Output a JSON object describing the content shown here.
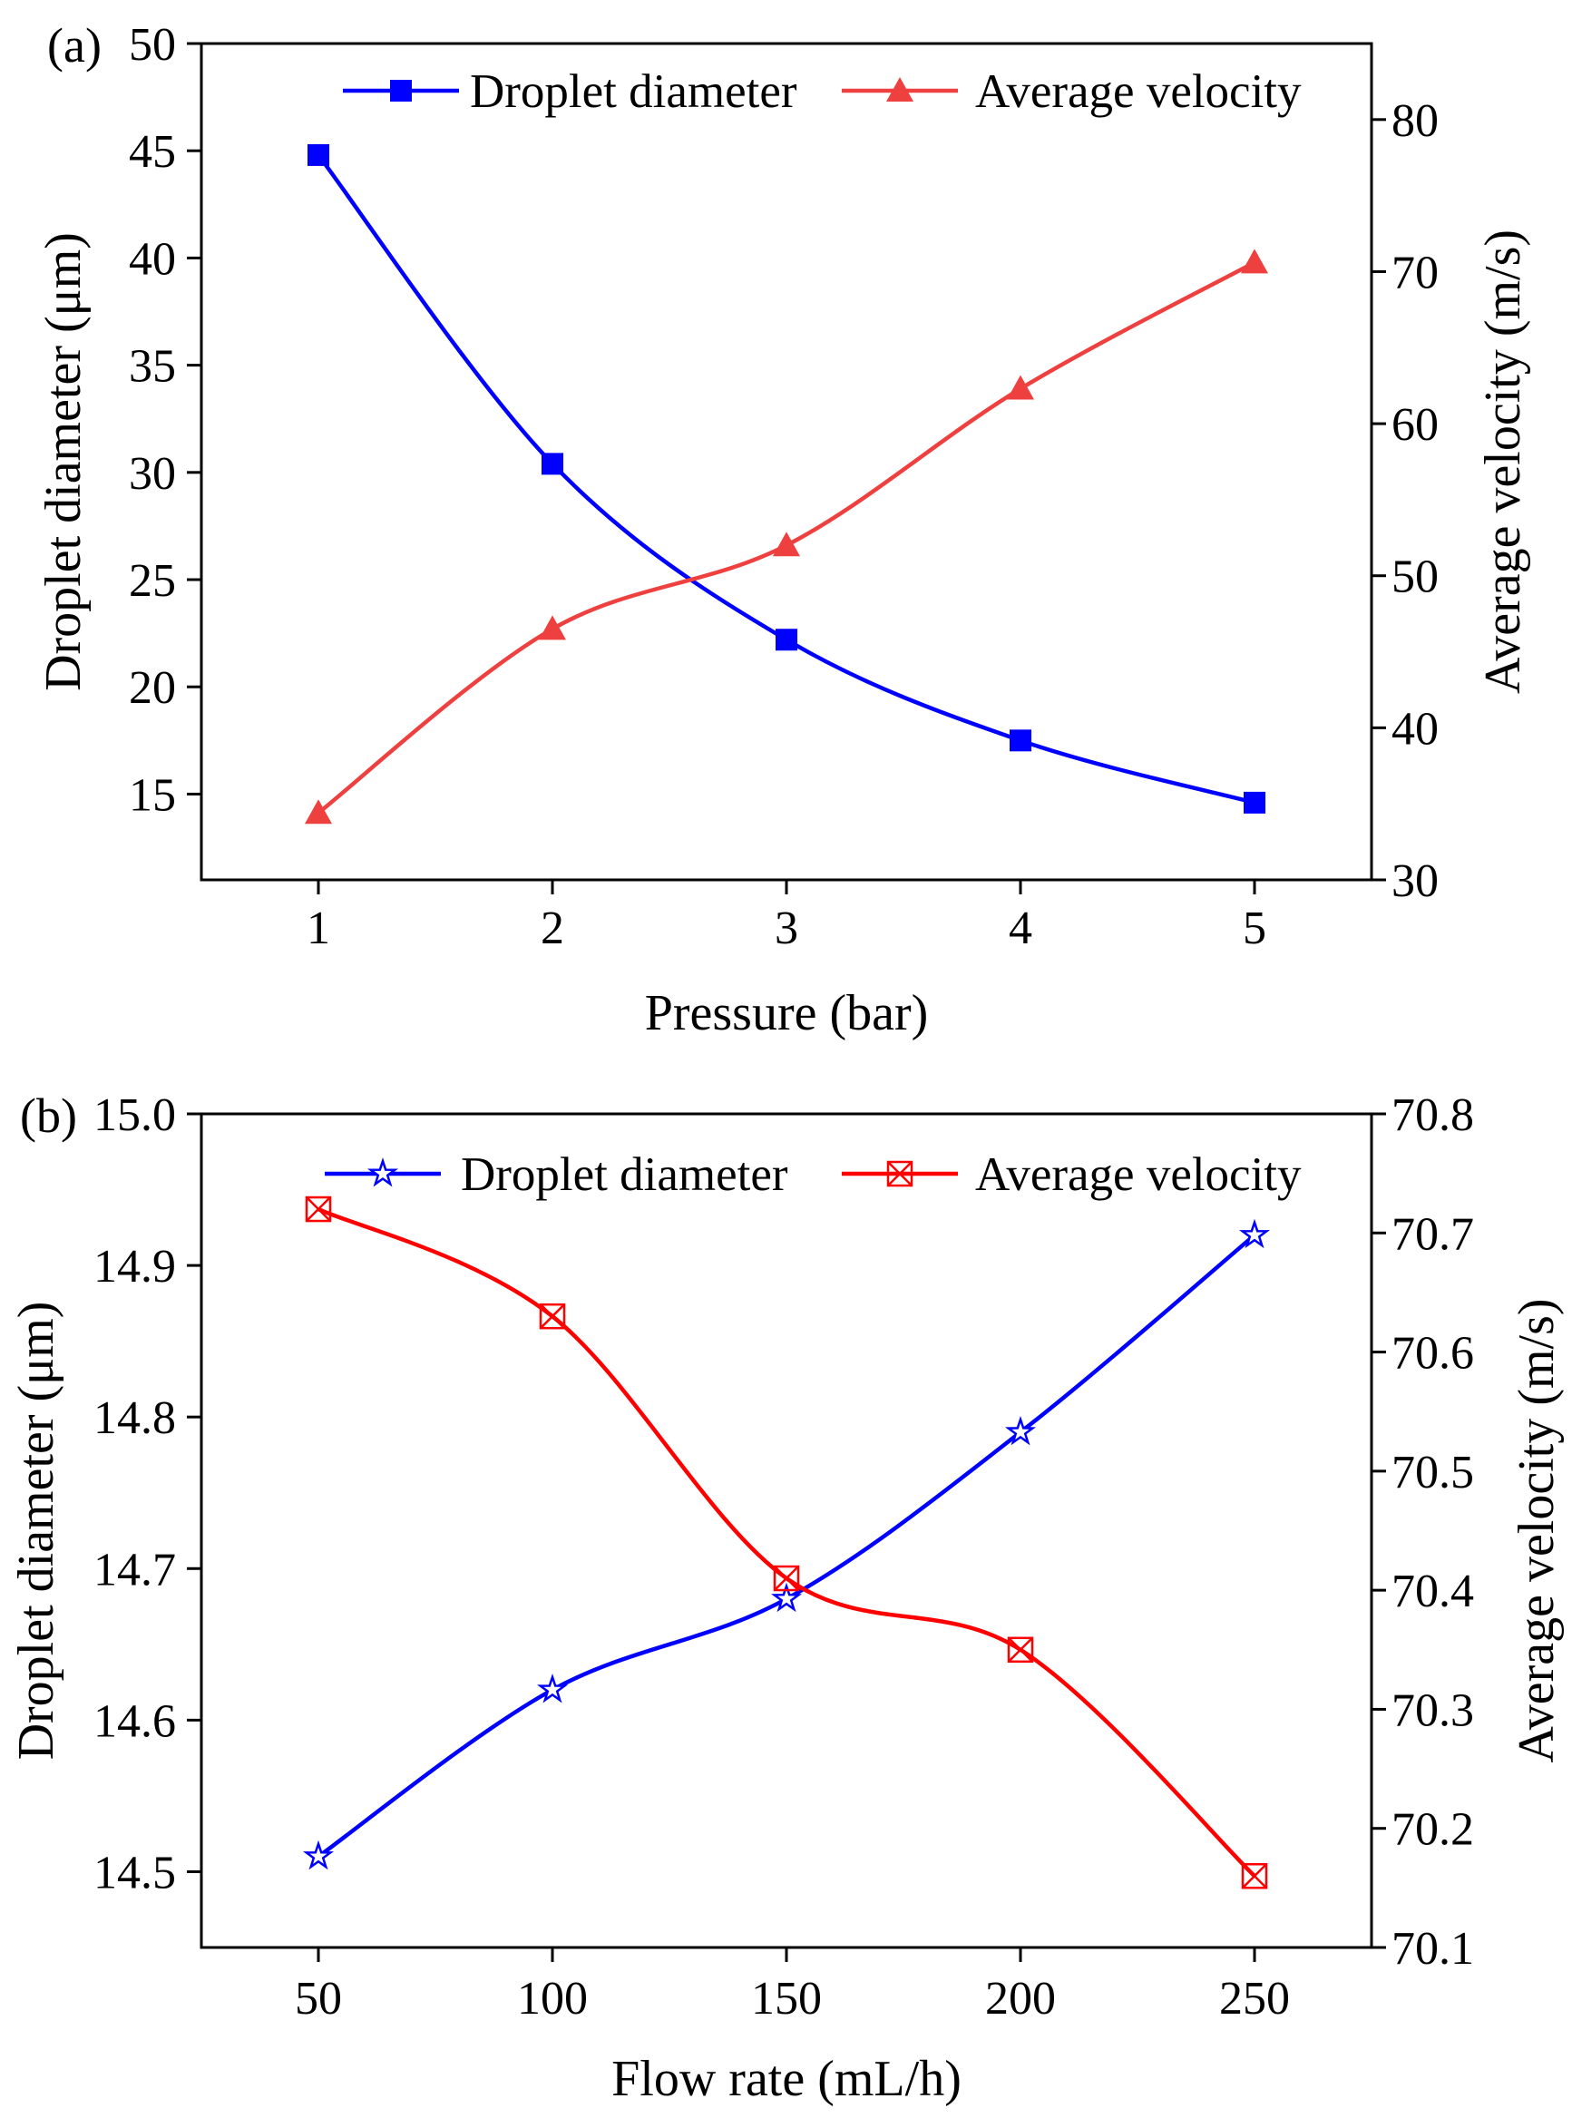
{
  "chart_data": [
    {
      "type": "line",
      "panel_label": "(a)",
      "xlabel": "Pressure (bar)",
      "ylabel": "Droplet diameter (μm)",
      "y2label": "Average velocity (m/s)",
      "x": [
        1,
        2,
        3,
        4,
        5
      ],
      "xticks": [
        "1",
        "2",
        "3",
        "4",
        "5"
      ],
      "xlim": [
        0.5,
        5.5
      ],
      "ylim": [
        11,
        50
      ],
      "yticks": [
        "15",
        "20",
        "25",
        "30",
        "35",
        "40",
        "45",
        "50"
      ],
      "y2lim": [
        30,
        85
      ],
      "y2ticks": [
        "30",
        "40",
        "50",
        "60",
        "70",
        "80"
      ],
      "legend_position": "top-right",
      "series": [
        {
          "name": "Droplet diameter",
          "axis": "left",
          "marker": "square",
          "color": "#0000ff",
          "values": [
            44.8,
            30.4,
            22.2,
            17.5,
            14.6
          ]
        },
        {
          "name": "Average velocity",
          "axis": "right",
          "marker": "triangle",
          "color": "#ef4040",
          "values": [
            34.4,
            46.5,
            52.0,
            62.3,
            70.6
          ]
        }
      ]
    },
    {
      "type": "line",
      "panel_label": "(b)",
      "xlabel": "Flow rate  (mL/h)",
      "ylabel": "Droplet diameter (μm)",
      "y2label": "Average velocity (m/s)",
      "x": [
        50,
        100,
        150,
        200,
        250
      ],
      "xticks": [
        "50",
        "100",
        "150",
        "200",
        "250"
      ],
      "xlim": [
        25,
        275
      ],
      "ylim": [
        14.45,
        15.0
      ],
      "yticks": [
        "14.5",
        "14.6",
        "14.7",
        "14.8",
        "14.9",
        "15.0"
      ],
      "y2lim": [
        70.1,
        70.8
      ],
      "y2ticks": [
        "70.1",
        "70.2",
        "70.3",
        "70.4",
        "70.5",
        "70.6",
        "70.7",
        "70.8"
      ],
      "legend_position": "top-right",
      "series": [
        {
          "name": "Droplet diameter",
          "axis": "left",
          "marker": "star",
          "color": "#0000ff",
          "values": [
            14.51,
            14.62,
            14.68,
            14.79,
            14.92
          ]
        },
        {
          "name": "Average velocity",
          "axis": "right",
          "marker": "xbox",
          "color": "#ff0000",
          "values": [
            70.72,
            70.63,
            70.41,
            70.35,
            70.16
          ]
        }
      ]
    }
  ]
}
